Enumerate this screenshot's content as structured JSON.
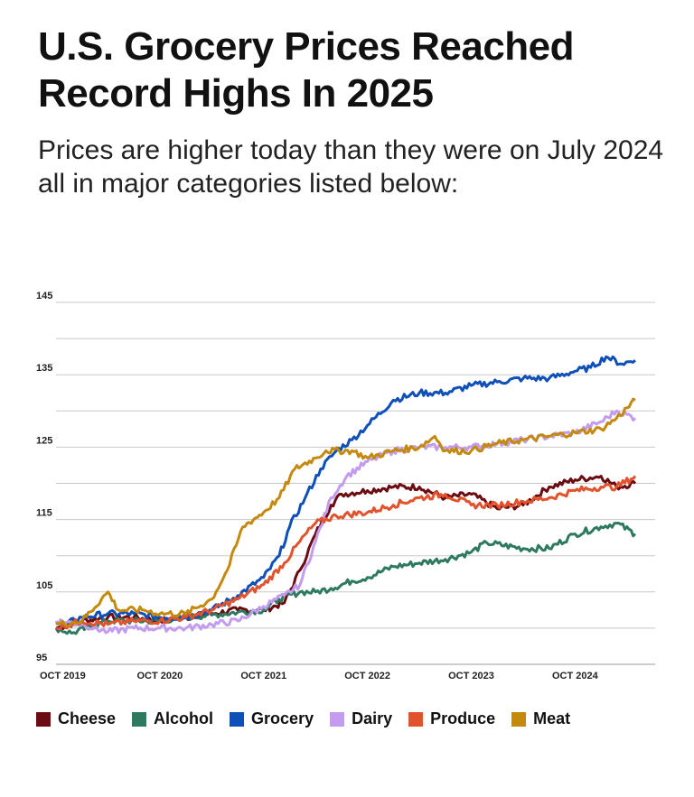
{
  "title": "U.S. Grocery Prices Reached Record Highs In 2025",
  "subtitle": "Prices are higher today than they were on July 2024 all in major categories listed below:",
  "chart_data": {
    "type": "line",
    "ylim": [
      95,
      145
    ],
    "yticks": [
      95,
      105,
      115,
      125,
      135,
      145
    ],
    "xlim": [
      2019.75,
      2025.33
    ],
    "xticks": [
      {
        "x": 2019.75,
        "label": "OCT 2019"
      },
      {
        "x": 2020.75,
        "label": "OCT 2020"
      },
      {
        "x": 2021.75,
        "label": "OCT 2021"
      },
      {
        "x": 2022.75,
        "label": "OCT 2022"
      },
      {
        "x": 2023.75,
        "label": "OCT 2023"
      },
      {
        "x": 2024.75,
        "label": "OCT 2024"
      }
    ],
    "grid": true,
    "legend_position": "bottom",
    "series": [
      {
        "name": "Cheese",
        "color": "#6b0b12",
        "points": [
          [
            2019.75,
            100
          ],
          [
            2020.0,
            101
          ],
          [
            2020.25,
            101.5
          ],
          [
            2020.5,
            101.5
          ],
          [
            2020.75,
            101
          ],
          [
            2021.0,
            101.5
          ],
          [
            2021.25,
            102
          ],
          [
            2021.5,
            102.5
          ],
          [
            2021.75,
            102.5
          ],
          [
            2021.95,
            103.5
          ],
          [
            2022.1,
            108
          ],
          [
            2022.25,
            113
          ],
          [
            2022.4,
            117
          ],
          [
            2022.5,
            118.5
          ],
          [
            2022.75,
            119
          ],
          [
            2023.0,
            119.5
          ],
          [
            2023.25,
            119.5
          ],
          [
            2023.5,
            118
          ],
          [
            2023.75,
            118.5
          ],
          [
            2024.0,
            116.5
          ],
          [
            2024.25,
            117
          ],
          [
            2024.5,
            119.5
          ],
          [
            2024.75,
            120.5
          ],
          [
            2025.0,
            121
          ],
          [
            2025.15,
            119.5
          ],
          [
            2025.33,
            120
          ]
        ]
      },
      {
        "name": "Alcohol",
        "color": "#2e7a5f",
        "points": [
          [
            2019.75,
            100
          ],
          [
            2019.9,
            99.3
          ],
          [
            2020.25,
            101
          ],
          [
            2020.5,
            101
          ],
          [
            2020.75,
            101
          ],
          [
            2021.0,
            101.5
          ],
          [
            2021.25,
            101.8
          ],
          [
            2021.5,
            102.2
          ],
          [
            2021.75,
            102.5
          ],
          [
            2021.9,
            104
          ],
          [
            2022.1,
            105
          ],
          [
            2022.25,
            105
          ],
          [
            2022.4,
            105.5
          ],
          [
            2022.6,
            106.5
          ],
          [
            2022.75,
            107
          ],
          [
            2023.0,
            108.5
          ],
          [
            2023.25,
            109
          ],
          [
            2023.5,
            109.5
          ],
          [
            2023.75,
            110.5
          ],
          [
            2023.9,
            111.8
          ],
          [
            2024.25,
            111
          ],
          [
            2024.5,
            111
          ],
          [
            2024.75,
            113
          ],
          [
            2025.0,
            114
          ],
          [
            2025.15,
            114.5
          ],
          [
            2025.33,
            113
          ]
        ]
      },
      {
        "name": "Grocery",
        "color": "#0f4fb8",
        "points": [
          [
            2019.75,
            100
          ],
          [
            2020.0,
            101.5
          ],
          [
            2020.25,
            102
          ],
          [
            2020.5,
            102
          ],
          [
            2020.75,
            101.5
          ],
          [
            2021.0,
            101.5
          ],
          [
            2021.25,
            102.5
          ],
          [
            2021.5,
            104.5
          ],
          [
            2021.75,
            107
          ],
          [
            2021.9,
            110
          ],
          [
            2022.0,
            114
          ],
          [
            2022.15,
            118
          ],
          [
            2022.3,
            122
          ],
          [
            2022.45,
            124.5
          ],
          [
            2022.6,
            126
          ],
          [
            2022.75,
            128
          ],
          [
            2023.0,
            131.5
          ],
          [
            2023.25,
            132.5
          ],
          [
            2023.5,
            132.5
          ],
          [
            2023.75,
            133.5
          ],
          [
            2024.0,
            134
          ],
          [
            2024.25,
            134.5
          ],
          [
            2024.5,
            134.5
          ],
          [
            2024.75,
            135.5
          ],
          [
            2024.9,
            136
          ],
          [
            2025.05,
            137.5
          ],
          [
            2025.2,
            136.5
          ],
          [
            2025.33,
            137
          ]
        ]
      },
      {
        "name": "Dairy",
        "color": "#c39cf0",
        "points": [
          [
            2019.75,
            101
          ],
          [
            2020.0,
            100.5
          ],
          [
            2020.25,
            99.5
          ],
          [
            2020.5,
            100
          ],
          [
            2020.75,
            100
          ],
          [
            2021.0,
            100
          ],
          [
            2021.25,
            100.5
          ],
          [
            2021.5,
            101
          ],
          [
            2021.75,
            103
          ],
          [
            2021.95,
            104.5
          ],
          [
            2022.1,
            106
          ],
          [
            2022.25,
            112
          ],
          [
            2022.4,
            118
          ],
          [
            2022.55,
            121
          ],
          [
            2022.75,
            123
          ],
          [
            2023.0,
            124.5
          ],
          [
            2023.25,
            125
          ],
          [
            2023.5,
            125
          ],
          [
            2023.75,
            125
          ],
          [
            2024.0,
            125.5
          ],
          [
            2024.25,
            126
          ],
          [
            2024.5,
            126.5
          ],
          [
            2024.75,
            127
          ],
          [
            2025.0,
            128.5
          ],
          [
            2025.15,
            130
          ],
          [
            2025.33,
            129
          ]
        ]
      },
      {
        "name": "Produce",
        "color": "#e0532d",
        "points": [
          [
            2019.75,
            100
          ],
          [
            2020.0,
            101
          ],
          [
            2020.25,
            100.5
          ],
          [
            2020.5,
            101
          ],
          [
            2020.75,
            101
          ],
          [
            2021.0,
            101.5
          ],
          [
            2021.25,
            102.5
          ],
          [
            2021.5,
            104
          ],
          [
            2021.75,
            106
          ],
          [
            2021.95,
            109
          ],
          [
            2022.1,
            112
          ],
          [
            2022.25,
            114.5
          ],
          [
            2022.45,
            115.5
          ],
          [
            2022.75,
            116
          ],
          [
            2023.0,
            117
          ],
          [
            2023.25,
            118
          ],
          [
            2023.5,
            118.5
          ],
          [
            2023.75,
            117
          ],
          [
            2024.0,
            117
          ],
          [
            2024.25,
            117.5
          ],
          [
            2024.5,
            118
          ],
          [
            2024.75,
            119
          ],
          [
            2025.0,
            119.5
          ],
          [
            2025.15,
            119.5
          ],
          [
            2025.33,
            121
          ]
        ]
      },
      {
        "name": "Meat",
        "color": "#c48a0e",
        "points": [
          [
            2019.75,
            100.5
          ],
          [
            2020.0,
            101
          ],
          [
            2020.25,
            105
          ],
          [
            2020.35,
            102.5
          ],
          [
            2020.6,
            102.5
          ],
          [
            2020.75,
            102
          ],
          [
            2021.0,
            102
          ],
          [
            2021.25,
            104
          ],
          [
            2021.4,
            108
          ],
          [
            2021.55,
            114
          ],
          [
            2021.75,
            116
          ],
          [
            2021.9,
            118
          ],
          [
            2022.05,
            122
          ],
          [
            2022.25,
            123.5
          ],
          [
            2022.35,
            124.5
          ],
          [
            2022.6,
            124.5
          ],
          [
            2022.75,
            123.5
          ],
          [
            2023.0,
            124.5
          ],
          [
            2023.25,
            125
          ],
          [
            2023.4,
            126.5
          ],
          [
            2023.5,
            124.5
          ],
          [
            2023.75,
            124.5
          ],
          [
            2024.0,
            125.5
          ],
          [
            2024.25,
            126
          ],
          [
            2024.5,
            126.5
          ],
          [
            2024.75,
            127
          ],
          [
            2025.0,
            127.5
          ],
          [
            2025.15,
            129
          ],
          [
            2025.33,
            131.5
          ]
        ]
      }
    ]
  }
}
